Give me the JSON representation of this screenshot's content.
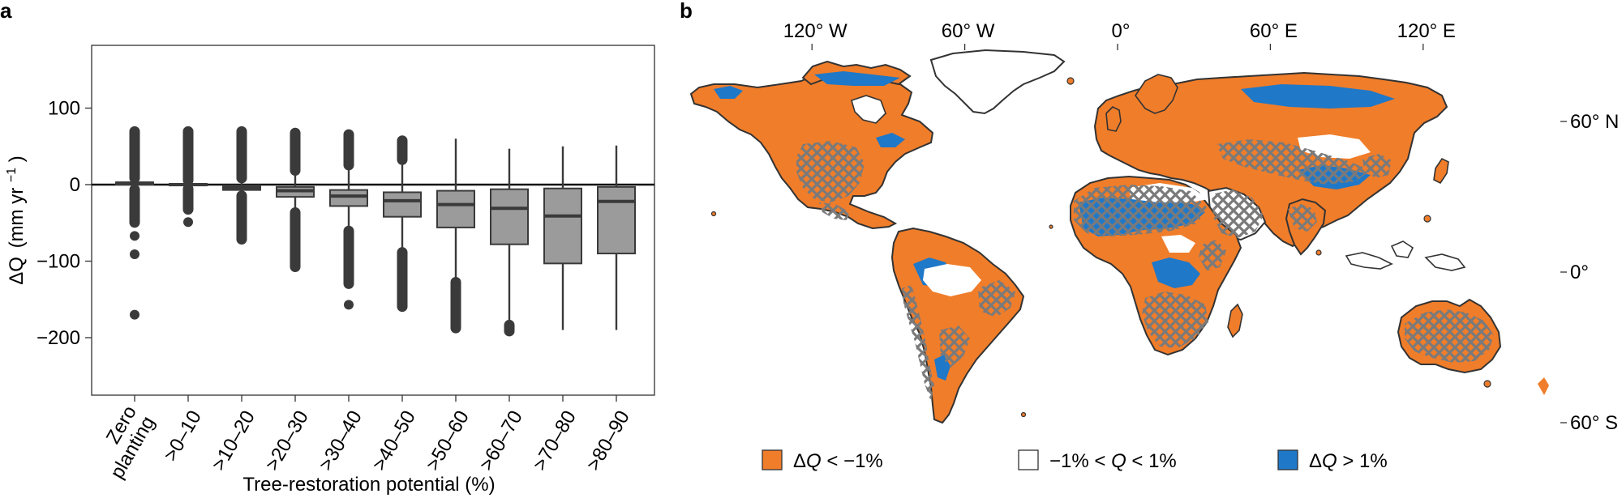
{
  "panel_a_letter": "a",
  "panel_b_letter": "b",
  "colors": {
    "box_fill": "#9b9b9b",
    "box_stroke": "#3a3a3a",
    "outlier": "#3a3a3a",
    "decrease": "#f07d2a",
    "neutral": "#ffffff",
    "increase": "#1f78c8",
    "hatch": "#7a7a7a",
    "coast": "#333333"
  },
  "chart_data": [
    {
      "type": "box",
      "ylabel_main": "ΔQ",
      "ylabel_unit": "(mm yr",
      "ylabel_exp": "−1",
      "ylabel_close": ")",
      "xlabel": "Tree-restoration potential (%)",
      "ylim": [
        -205,
        140
      ],
      "yticks": [
        100,
        0,
        -100,
        -200
      ],
      "ytick_labels": [
        "100",
        "0",
        "−100",
        "−200"
      ],
      "reference_line": 0,
      "categories": [
        "Zero planting",
        ">0–10",
        ">10–20",
        ">20–30",
        ">30–40",
        ">40–50",
        ">50–60",
        ">60–70",
        ">70–80",
        ">80–90"
      ],
      "category_lines": [
        [
          "Zero",
          "planting"
        ],
        [
          ">0–10"
        ],
        [
          ">10–20"
        ],
        [
          ">20–30"
        ],
        [
          ">30–40"
        ],
        [
          ">40–50"
        ],
        [
          ">50–60"
        ],
        [
          ">60–70"
        ],
        [
          ">70–80"
        ],
        [
          ">80–90"
        ]
      ],
      "boxes": [
        {
          "q1": 0,
          "median": 2,
          "q3": 3,
          "whisker_low": -2,
          "whisker_high": 5,
          "outliers_high": [
            8,
            70
          ],
          "outliers_low": [
            -6,
            -50
          ],
          "extra_low": [
            -67,
            -91,
            -170
          ]
        },
        {
          "q1": -1,
          "median": 0,
          "q3": 1,
          "whisker_low": -3,
          "whisker_high": 3,
          "outliers_high": [
            5,
            70
          ],
          "outliers_low": [
            -5,
            -33
          ],
          "extra_low": [
            -49
          ]
        },
        {
          "q1": -7,
          "median": -4,
          "q3": -1,
          "whisker_low": -12,
          "whisker_high": 5,
          "outliers_high": [
            8,
            70
          ],
          "outliers_low": [
            -14,
            -72
          ],
          "extra_low": []
        },
        {
          "q1": -16,
          "median": -8,
          "q3": -3,
          "whisker_low": -33,
          "whisker_high": 16,
          "outliers_high": [
            18,
            68
          ],
          "outliers_low": [
            -36,
            -108
          ],
          "extra_low": []
        },
        {
          "q1": -28,
          "median": -15,
          "q3": -7,
          "whisker_low": -58,
          "whisker_high": 23,
          "outliers_high": [
            25,
            66
          ],
          "outliers_low": [
            -60,
            -130
          ],
          "extra_low": [
            -157
          ]
        },
        {
          "q1": -42,
          "median": -21,
          "q3": -10,
          "whisker_low": -86,
          "whisker_high": 30,
          "outliers_high": [
            32,
            58
          ],
          "outliers_low": [
            -88,
            -160
          ],
          "extra_low": []
        },
        {
          "q1": -56,
          "median": -26,
          "q3": -8,
          "whisker_low": -124,
          "whisker_high": 60,
          "outliers_high": [],
          "outliers_low": [
            -127,
            -188
          ],
          "extra_low": []
        },
        {
          "q1": -78,
          "median": -31,
          "q3": -6,
          "whisker_low": -180,
          "whisker_high": 47,
          "outliers_high": [],
          "outliers_low": [
            -183,
            -192
          ],
          "extra_low": []
        },
        {
          "q1": -103,
          "median": -41,
          "q3": -5,
          "whisker_low": -190,
          "whisker_high": 50,
          "outliers_high": [],
          "outliers_low": [],
          "extra_low": []
        },
        {
          "q1": -90,
          "median": -22,
          "q3": -3,
          "whisker_low": -190,
          "whisker_high": 51,
          "outliers_high": [],
          "outliers_low": [],
          "extra_low": []
        }
      ]
    },
    {
      "type": "map",
      "lon_ticks": [
        "120° W",
        "60° W",
        "0°",
        "60° E",
        "120° E"
      ],
      "lon_values": [
        -120,
        -60,
        0,
        60,
        120
      ],
      "lat_ticks": [
        "60° N",
        "0°",
        "60° S"
      ],
      "lat_values": [
        60,
        0,
        -60
      ],
      "legend": [
        {
          "key": "decrease",
          "parts": [
            "Δ",
            "Q",
            " < −1%"
          ]
        },
        {
          "key": "neutral",
          "parts": [
            "−1% < ",
            "Q",
            " < 1%"
          ]
        },
        {
          "key": "increase",
          "parts": [
            "Δ",
            "Q",
            " > 1%"
          ]
        }
      ]
    }
  ]
}
